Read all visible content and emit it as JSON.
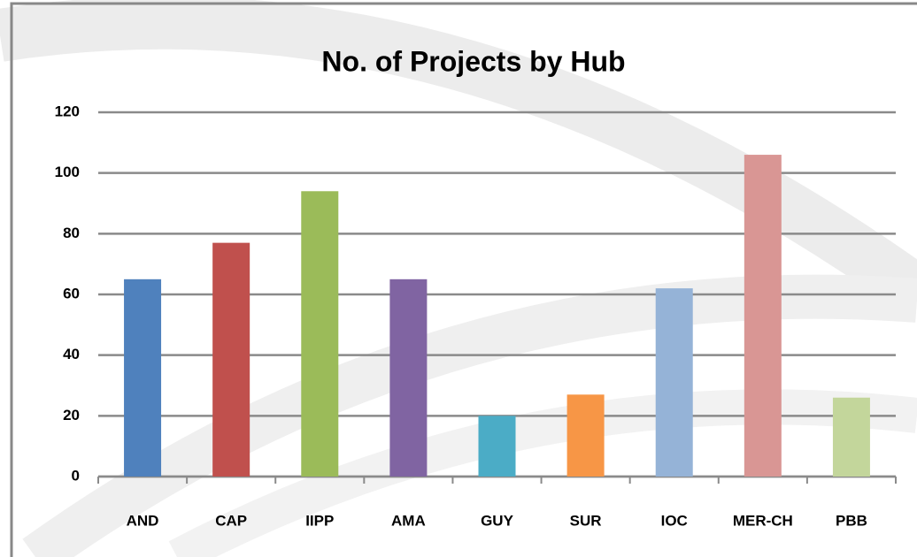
{
  "chart_data": {
    "type": "bar",
    "title": "No. of Projects by Hub",
    "categories": [
      "AND",
      "CAP",
      "IIPP",
      "AMA",
      "GUY",
      "SUR",
      "IOC",
      "MER-CH",
      "PBB"
    ],
    "values": [
      65,
      77,
      94,
      65,
      20,
      27,
      62,
      106,
      26
    ],
    "colors": [
      "#4f81bd",
      "#c0504d",
      "#9bbb59",
      "#8064a2",
      "#4bacc6",
      "#f79646",
      "#95b3d7",
      "#d99694",
      "#c3d69b"
    ],
    "ylim": [
      0,
      120
    ],
    "yticks": [
      0,
      20,
      40,
      60,
      80,
      100,
      120
    ],
    "grid": true
  }
}
